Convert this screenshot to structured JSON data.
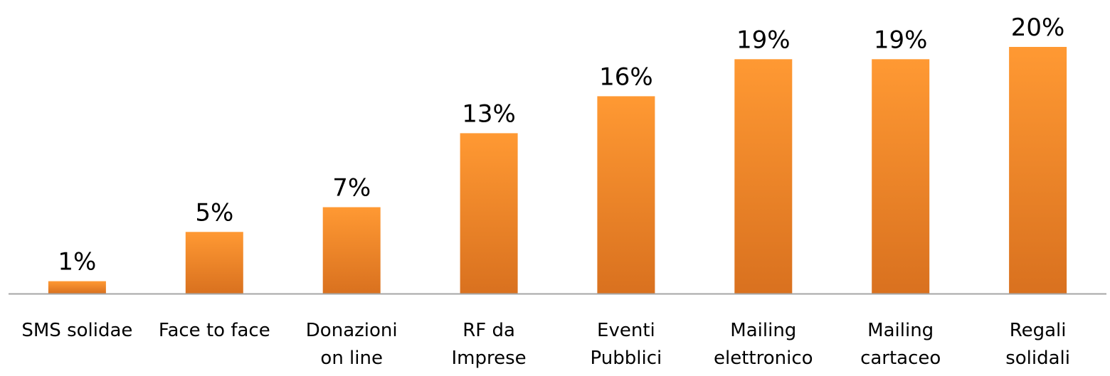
{
  "chart_data": {
    "type": "bar",
    "title": "",
    "xlabel": "",
    "ylabel": "",
    "ylim": [
      0,
      20
    ],
    "grid": false,
    "legend": "none",
    "categories": [
      [
        "SMS solidae"
      ],
      [
        "Face to face"
      ],
      [
        "Donazioni",
        "on line"
      ],
      [
        "RF da",
        "Imprese"
      ],
      [
        "Eventi",
        "Pubblici"
      ],
      [
        "Mailing",
        "elettronico"
      ],
      [
        "Mailing",
        "cartaceo"
      ],
      [
        "Regali",
        "solidali"
      ]
    ],
    "values": [
      1,
      5,
      7,
      13,
      16,
      19,
      19,
      20
    ],
    "data_labels": [
      "1%",
      "5%",
      "7%",
      "13%",
      "16%",
      "19%",
      "19%",
      "20%"
    ],
    "colors": {
      "bar_top": "#FF9933",
      "bar_bottom": "#D9711F",
      "axis": "#A6A6A6",
      "text": "#000000"
    }
  }
}
